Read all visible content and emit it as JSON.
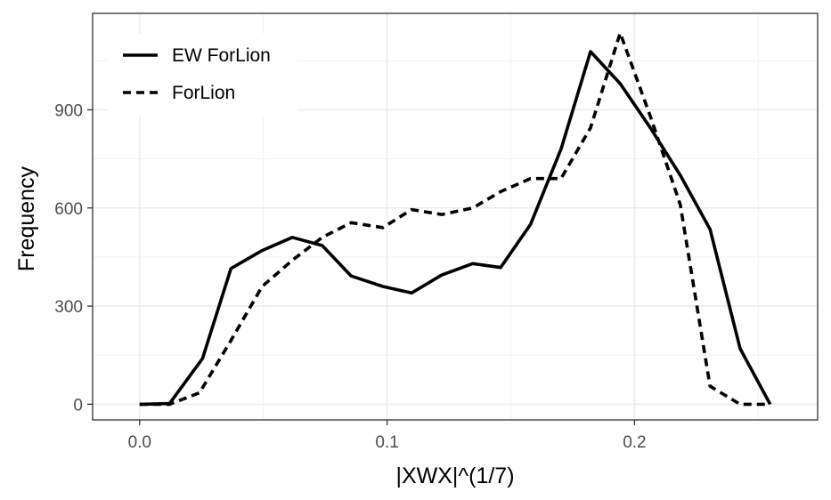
{
  "chart_data": {
    "type": "line",
    "title": "",
    "xlabel": "|XWX|^(1/7)",
    "ylabel": "Frequency",
    "xlim": [
      -0.019,
      0.274
    ],
    "ylim": [
      -48,
      1195
    ],
    "x_ticks": [
      0.0,
      0.1,
      0.2
    ],
    "x_tick_labels": [
      "0.0",
      "0.1",
      "0.2"
    ],
    "y_ticks": [
      0,
      300,
      600,
      900
    ],
    "y_tick_labels": [
      "0",
      "300",
      "600",
      "900"
    ],
    "grid": true,
    "legend_position": "top-left",
    "series": [
      {
        "name": "EW ForLion",
        "line_style": "solid",
        "color": "#000000",
        "x": [
          0.0,
          0.0121,
          0.0254,
          0.0369,
          0.0495,
          0.0617,
          0.0738,
          0.0855,
          0.0983,
          0.1099,
          0.1221,
          0.1346,
          0.1459,
          0.158,
          0.1703,
          0.1822,
          0.1942,
          0.2064,
          0.2185,
          0.2305,
          0.2427,
          0.2548
        ],
        "y": [
          0,
          2,
          140,
          415,
          470,
          510,
          485,
          392,
          360,
          340,
          395,
          430,
          418,
          550,
          780,
          1078,
          980,
          845,
          700,
          535,
          170,
          0
        ]
      },
      {
        "name": "ForLion",
        "line_style": "dashed",
        "color": "#000000",
        "x": [
          0.0,
          0.0121,
          0.0242,
          0.0369,
          0.0495,
          0.0617,
          0.0738,
          0.0855,
          0.0983,
          0.1099,
          0.1221,
          0.1346,
          0.1459,
          0.158,
          0.1703,
          0.1822,
          0.1942,
          0.2064,
          0.2185,
          0.2305,
          0.2427,
          0.2548
        ],
        "y": [
          0,
          0,
          35,
          195,
          360,
          440,
          510,
          555,
          540,
          595,
          580,
          600,
          650,
          690,
          690,
          845,
          1135,
          880,
          610,
          55,
          0,
          0
        ]
      }
    ]
  }
}
